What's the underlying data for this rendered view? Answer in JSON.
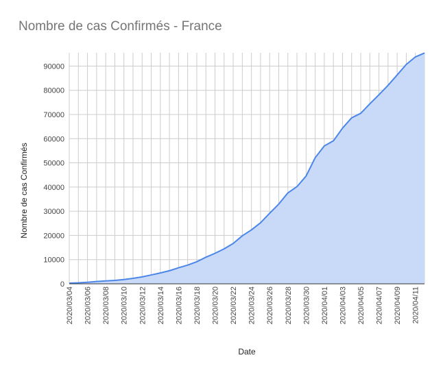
{
  "chart_data": {
    "type": "area",
    "title": "Nombre de cas Confirmés - France",
    "xlabel": "Date",
    "ylabel": "Nombre de cas Confirmés",
    "x": [
      "2020/03/04",
      "2020/03/05",
      "2020/03/06",
      "2020/03/07",
      "2020/03/08",
      "2020/03/09",
      "2020/03/10",
      "2020/03/11",
      "2020/03/12",
      "2020/03/13",
      "2020/03/14",
      "2020/03/15",
      "2020/03/16",
      "2020/03/17",
      "2020/03/18",
      "2020/03/19",
      "2020/03/20",
      "2020/03/21",
      "2020/03/22",
      "2020/03/23",
      "2020/03/24",
      "2020/03/25",
      "2020/03/26",
      "2020/03/27",
      "2020/03/28",
      "2020/03/29",
      "2020/03/30",
      "2020/03/31",
      "2020/04/01",
      "2020/04/02",
      "2020/04/03",
      "2020/04/04",
      "2020/04/05",
      "2020/04/06",
      "2020/04/07",
      "2020/04/08",
      "2020/04/09",
      "2020/04/10",
      "2020/04/11",
      "2020/04/12"
    ],
    "x_tick_labels": [
      "2020/03/04",
      "2020/03/06",
      "2020/03/08",
      "2020/03/10",
      "2020/03/12",
      "2020/03/14",
      "2020/03/16",
      "2020/03/18",
      "2020/03/20",
      "2020/03/22",
      "2020/03/24",
      "2020/03/26",
      "2020/03/28",
      "2020/03/30",
      "2020/04/01",
      "2020/04/03",
      "2020/04/05",
      "2020/04/07",
      "2020/04/09",
      "2020/04/11"
    ],
    "values": [
      285,
      423,
      653,
      949,
      1209,
      1412,
      1784,
      2281,
      2876,
      3661,
      4499,
      5423,
      6633,
      7730,
      9134,
      10995,
      12612,
      14459,
      16689,
      19856,
      22304,
      25233,
      29155,
      32964,
      37575,
      40174,
      44550,
      52128,
      56989,
      59105,
      64338,
      68605,
      70478,
      74390,
      78167,
      82048,
      86334,
      90676,
      93790,
      95403
    ],
    "ylim": [
      0,
      95500
    ],
    "y_ticks": [
      0,
      10000,
      20000,
      30000,
      40000,
      50000,
      60000,
      70000,
      80000,
      90000
    ],
    "grid": true,
    "colors": {
      "line": "#4a86e8",
      "fill": "#c9daf8",
      "grid": "#cccccc",
      "axis": "#333333"
    }
  }
}
